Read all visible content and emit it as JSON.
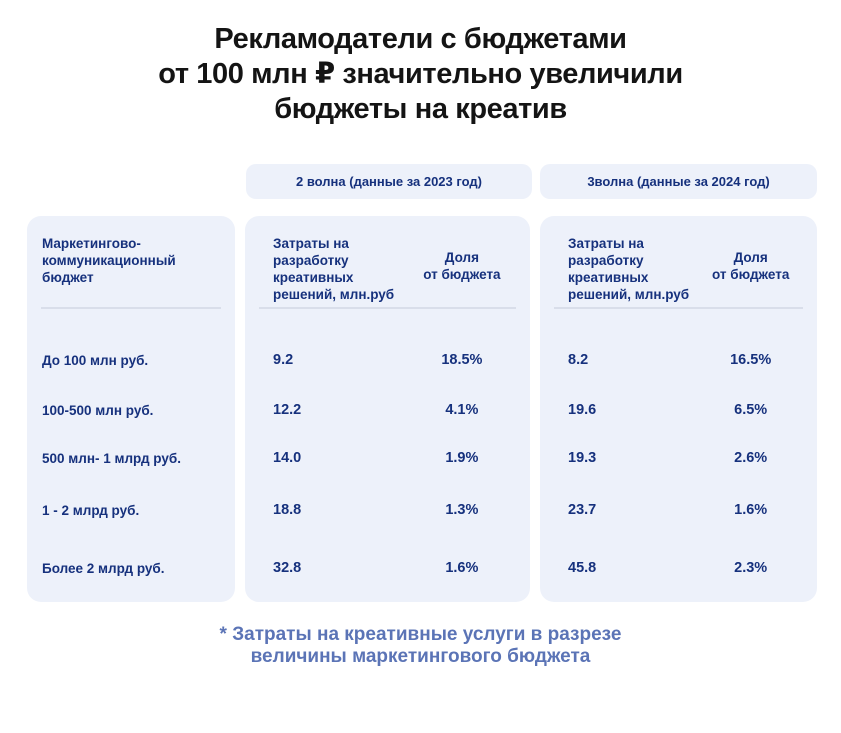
{
  "title_lines": [
    "Рекламодатели с бюджетами",
    "от 100 млн ₽ значительно увеличили",
    "бюджеты на креатив"
  ],
  "waves": [
    {
      "badge": "2 волна (данные за 2023 год)"
    },
    {
      "badge": "3волна (данные за 2024 год)"
    }
  ],
  "headers": {
    "row_dim": "Маркетингово-\nкоммуникационный\nбюджет",
    "spend": "Затраты на\nразработку\nкреативных\nрешений, млн.руб",
    "share": "Доля\nот бюджета"
  },
  "rows": [
    {
      "label": "До 100 млн руб.",
      "w2_spend": "9.2",
      "w2_share": "18.5%",
      "w3_spend": "8.2",
      "w3_share": "16.5%"
    },
    {
      "label": "100-500 млн руб.",
      "w2_spend": "12.2",
      "w2_share": "4.1%",
      "w3_spend": "19.6",
      "w3_share": "6.5%"
    },
    {
      "label": "500 млн- 1 млрд руб.",
      "w2_spend": "14.0",
      "w2_share": "1.9%",
      "w3_spend": "19.3",
      "w3_share": "2.6%"
    },
    {
      "label": "1 - 2 млрд руб.",
      "w2_spend": "18.8",
      "w2_share": "1.3%",
      "w3_spend": "23.7",
      "w3_share": "1.6%"
    },
    {
      "label": "Более 2 млрд руб.",
      "w2_spend": "32.8",
      "w2_share": "1.6%",
      "w3_spend": "45.8",
      "w3_share": "2.3%"
    }
  ],
  "footnote": "* Затраты на креативные услуги в разрезе\nвеличины маркетингового бюджета",
  "colors": {
    "background": "#ffffff",
    "panel_bg": "#edf1fa",
    "navy_text": "#16317d",
    "title_text": "#141414",
    "footnote_text": "#5b74b6",
    "divider": "#d9deea"
  },
  "chart_data": {
    "type": "table",
    "title": "Рекламодатели с бюджетами от 100 млн ₽ значительно увеличили бюджеты на креатив",
    "row_dimension": "Маркетингово-коммуникационный бюджет",
    "wave_groups": [
      "2 волна (данные за 2023 год)",
      "3волна (данные за 2024 год)"
    ],
    "measures": [
      "Затраты на разработку креативных решений, млн.руб",
      "Доля от бюджета"
    ],
    "rows": [
      {
        "budget": "До 100 млн руб.",
        "wave2_spend_mln_rub": 9.2,
        "wave2_share_pct": 18.5,
        "wave3_spend_mln_rub": 8.2,
        "wave3_share_pct": 16.5
      },
      {
        "budget": "100-500 млн руб.",
        "wave2_spend_mln_rub": 12.2,
        "wave2_share_pct": 4.1,
        "wave3_spend_mln_rub": 19.6,
        "wave3_share_pct": 6.5
      },
      {
        "budget": "500 млн- 1 млрд руб.",
        "wave2_spend_mln_rub": 14.0,
        "wave2_share_pct": 1.9,
        "wave3_spend_mln_rub": 19.3,
        "wave3_share_pct": 2.6
      },
      {
        "budget": "1 - 2 млрд руб.",
        "wave2_spend_mln_rub": 18.8,
        "wave2_share_pct": 1.3,
        "wave3_spend_mln_rub": 23.7,
        "wave3_share_pct": 1.6
      },
      {
        "budget": "Более 2 млрд руб.",
        "wave2_spend_mln_rub": 32.8,
        "wave2_share_pct": 1.6,
        "wave3_spend_mln_rub": 45.8,
        "wave3_share_pct": 2.3
      }
    ],
    "footnote": "* Затраты на креативные услуги в разрезе величины маркетингового бюджета"
  }
}
